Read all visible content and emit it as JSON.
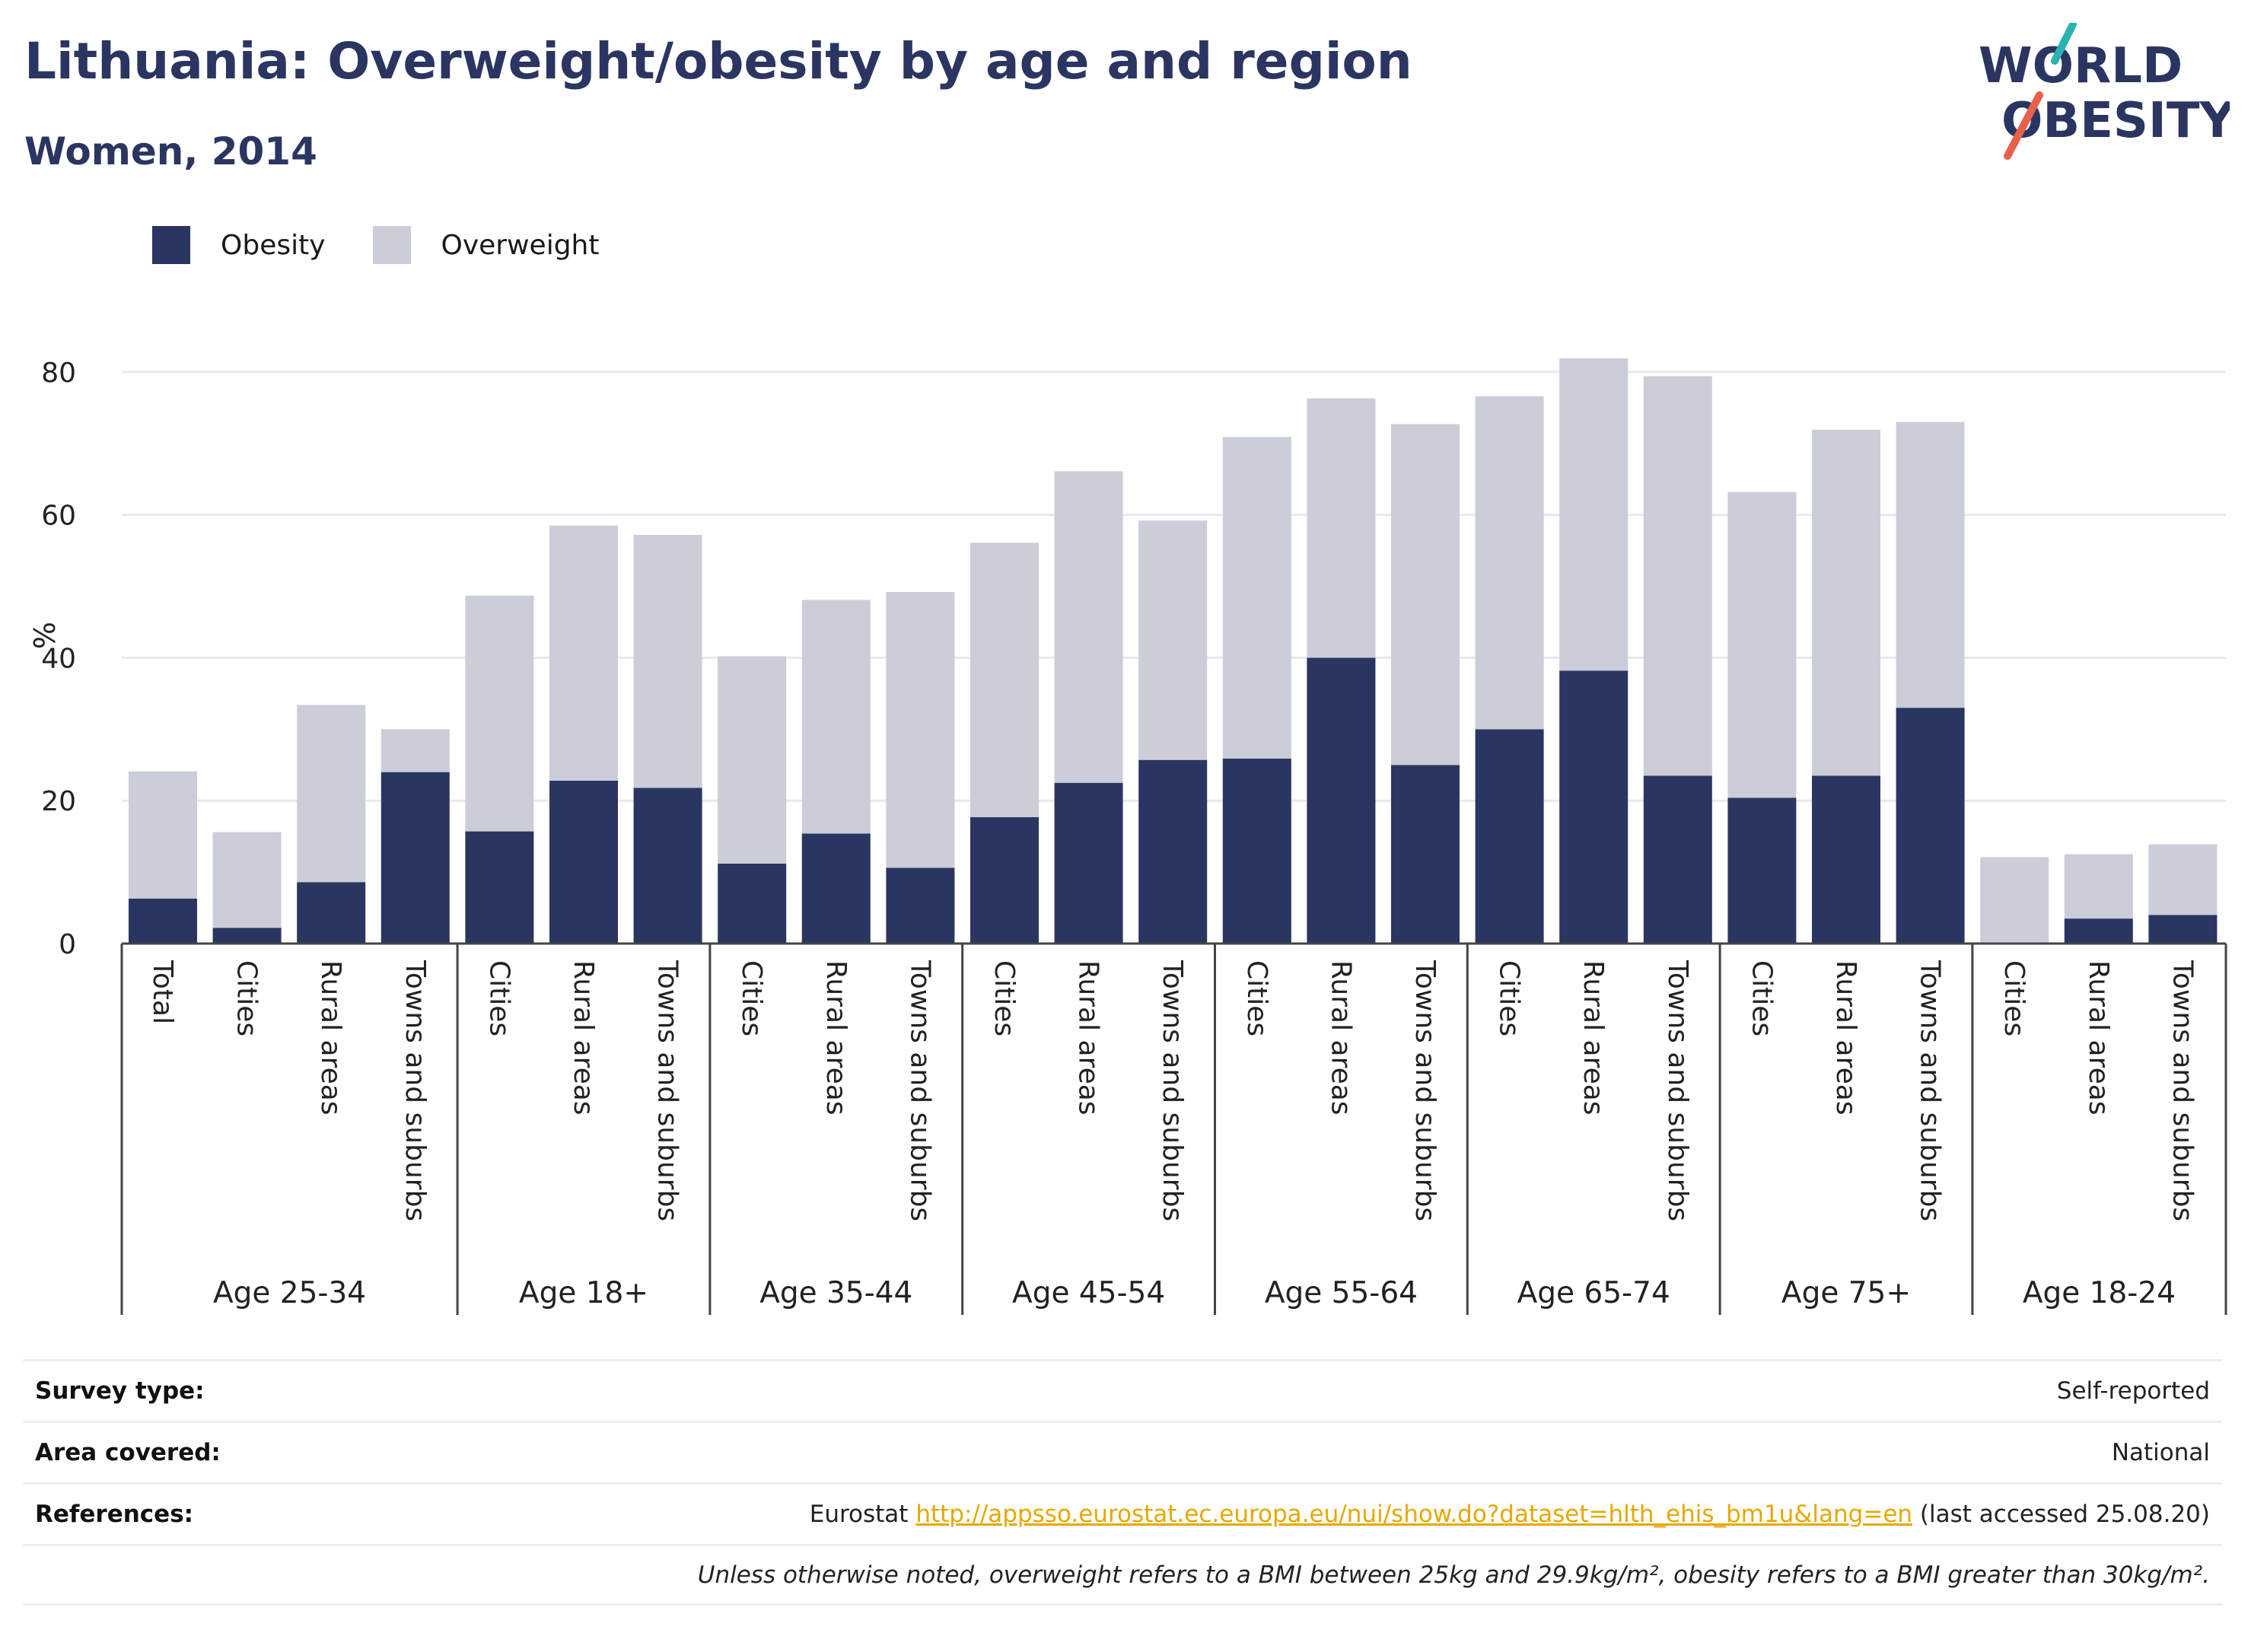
{
  "header": {
    "title": "Lithuania: Overweight/obesity by age and region",
    "subtitle": "Women, 2014"
  },
  "logo": {
    "line1": "WORLD",
    "line2": "OBESITY",
    "colors": {
      "text": "#2b3561",
      "slash_top": "#2bb3b1",
      "slash_bottom": "#e8604c"
    }
  },
  "legend": [
    {
      "label": "Obesity",
      "color": "#2b3561"
    },
    {
      "label": "Overweight",
      "color": "#cbcdd8"
    }
  ],
  "chart_data": {
    "type": "bar",
    "stacked": true,
    "ylabel": "%",
    "ylim": [
      0,
      90
    ],
    "yticks": [
      0,
      20,
      40,
      60,
      80
    ],
    "grid": true,
    "legend_position": "top-left",
    "groups": [
      {
        "label": "Age 25-34",
        "categories": [
          "Total",
          "Cities",
          "Rural areas",
          "Towns and suburbs"
        ]
      },
      {
        "label": "Age 18+",
        "categories": [
          "Cities",
          "Rural areas",
          "Towns and suburbs"
        ]
      },
      {
        "label": "Age 35-44",
        "categories": [
          "Cities",
          "Rural areas",
          "Towns and suburbs"
        ]
      },
      {
        "label": "Age 45-54",
        "categories": [
          "Cities",
          "Rural areas",
          "Towns and suburbs"
        ]
      },
      {
        "label": "Age 55-64",
        "categories": [
          "Cities",
          "Rural areas",
          "Towns and suburbs"
        ]
      },
      {
        "label": "Age 65-74",
        "categories": [
          "Cities",
          "Rural areas",
          "Towns and suburbs"
        ]
      },
      {
        "label": "Age 75+",
        "categories": [
          "Cities",
          "Rural areas",
          "Towns and suburbs"
        ]
      },
      {
        "label": "Age 18-24",
        "categories": [
          "Cities",
          "Rural areas",
          "Towns and suburbs"
        ]
      }
    ],
    "series": [
      {
        "name": "Obesity",
        "color": "#2b3561",
        "values": [
          6.3,
          2.2,
          8.6,
          24.0,
          15.7,
          22.8,
          21.8,
          11.2,
          15.4,
          10.6,
          17.7,
          22.5,
          25.7,
          25.9,
          40.0,
          25.0,
          30.0,
          38.2,
          23.5,
          20.4,
          23.5,
          33.0,
          0,
          3.5,
          4.0
        ]
      },
      {
        "name": "Overweight",
        "color": "#cbcdd8",
        "values": [
          17.8,
          13.4,
          24.8,
          6.0,
          33.0,
          35.7,
          35.4,
          29.0,
          32.7,
          38.6,
          38.4,
          43.6,
          33.5,
          45.0,
          36.3,
          47.7,
          46.6,
          43.7,
          55.9,
          42.8,
          48.4,
          40.0,
          12.1,
          9.0,
          9.9
        ]
      }
    ]
  },
  "info": {
    "survey_type": {
      "label": "Survey type:",
      "value": "Self-reported"
    },
    "area_covered": {
      "label": "Area covered:",
      "value": "National"
    },
    "references": {
      "label": "References:",
      "source": "Eurostat",
      "url": "http://appsso.eurostat.ec.europa.eu/nui/show.do?dataset=hlth_ehis_bm1u&lang=en",
      "accessed": "(last accessed 25.08.20)"
    },
    "note": "Unless otherwise noted, overweight refers to a BMI between 25kg and 29.9kg/m², obesity refers to a BMI greater than 30kg/m²."
  }
}
